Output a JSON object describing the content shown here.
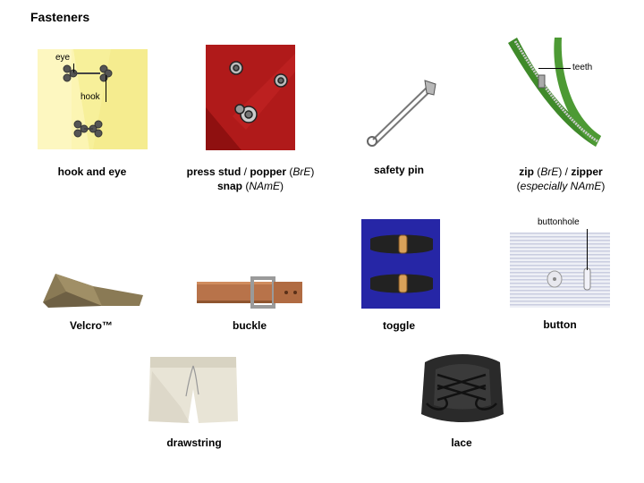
{
  "title": "Fasteners",
  "items": {
    "hook_and_eye": {
      "label": "hook and eye",
      "callouts": [
        "eye",
        "hook"
      ]
    },
    "press_stud": {
      "part1": "press stud",
      "sep1": " / ",
      "part2": "popper",
      "region1": "BrE",
      "line2": "snap",
      "region2": "NAmE"
    },
    "safety_pin": {
      "label": "safety pin"
    },
    "zip": {
      "part1": "zip",
      "region1": "BrE",
      "sep": " / ",
      "part2": "zipper",
      "line2": "especially NAmE",
      "callouts": [
        "teeth"
      ]
    },
    "velcro": {
      "label": "Velcro™"
    },
    "buckle": {
      "label": "buckle"
    },
    "toggle": {
      "label": "toggle"
    },
    "button": {
      "label": "button",
      "callouts": [
        "buttonhole"
      ]
    },
    "drawstring": {
      "label": "drawstring"
    },
    "lace": {
      "label": "lace"
    }
  },
  "colors": {
    "hook_bg": "#f7f09a",
    "snap_red": "#b01a1a",
    "zip_green": "#3f8a2a",
    "velcro_brown": "#8a7a55",
    "belt_brown": "#b8734a",
    "toggle_blue": "#2a2ab0",
    "shirt_stripe": "#c9cde0",
    "shorts_cream": "#e8e4d6",
    "shoe_black": "#2a2a2a"
  }
}
